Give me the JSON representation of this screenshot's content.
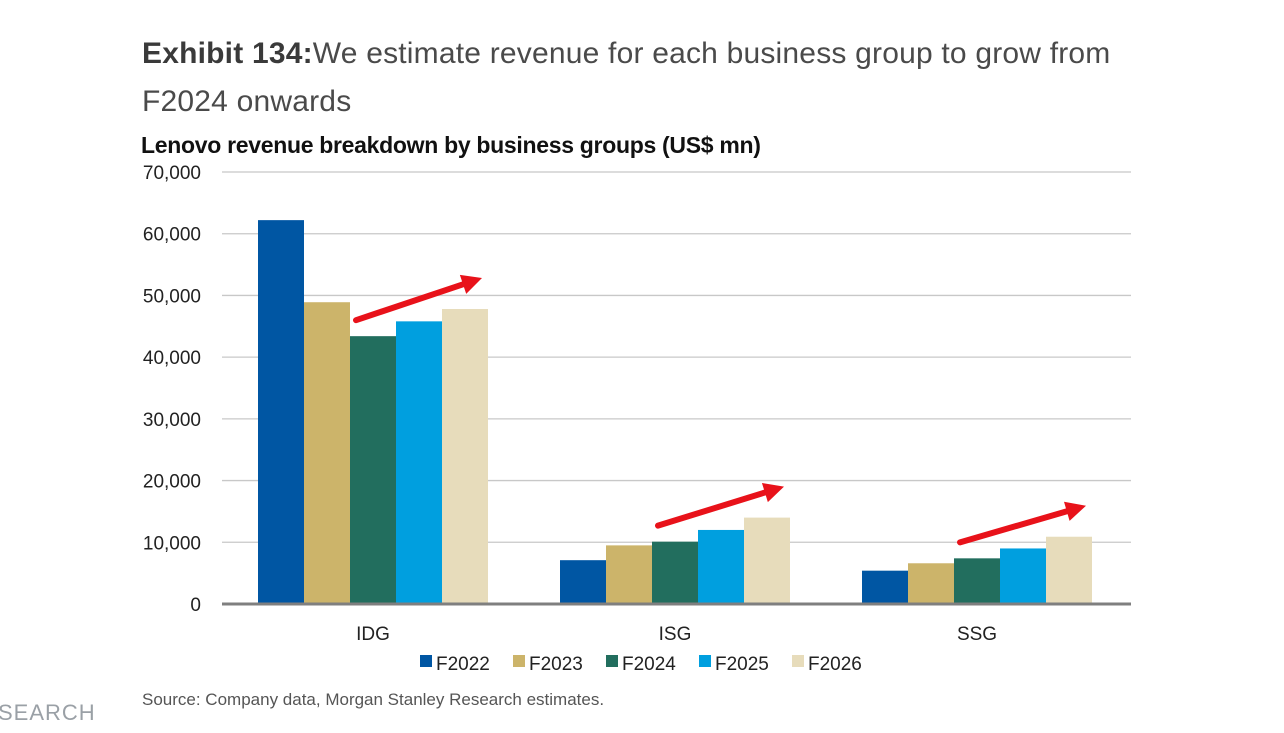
{
  "exhibit": {
    "label": "Exhibit 134:",
    "text": "We estimate revenue for each business group to grow from F2024 onwards"
  },
  "source": "Source: Company data, Morgan Stanley Research estimates.",
  "brand_fragment": "SEARCH",
  "chart_data": {
    "type": "bar",
    "title": "Lenovo revenue breakdown by business groups (US$ mn)",
    "categories": [
      "IDG",
      "ISG",
      "SSG"
    ],
    "series": [
      {
        "name": "F2022",
        "color": "#0056a3",
        "values": [
          62200,
          7100,
          5400
        ]
      },
      {
        "name": "F2023",
        "color": "#ccb46a",
        "values": [
          48900,
          9500,
          6600
        ]
      },
      {
        "name": "F2024",
        "color": "#226e5e",
        "values": [
          43400,
          10100,
          7400
        ]
      },
      {
        "name": "F2025",
        "color": "#009fdf",
        "values": [
          45800,
          12000,
          9000
        ]
      },
      {
        "name": "F2026",
        "color": "#e7dcbb",
        "values": [
          47800,
          14000,
          10900
        ]
      }
    ],
    "ylim": [
      0,
      70000
    ],
    "yticks": [
      0,
      10000,
      20000,
      30000,
      40000,
      50000,
      60000,
      70000
    ],
    "ytick_labels": [
      "0",
      "10,000",
      "20,000",
      "30,000",
      "40,000",
      "50,000",
      "60,000",
      "70,000"
    ],
    "xlabel": "",
    "ylabel": "",
    "grid": true,
    "legend": "bottom",
    "annotations": [
      {
        "type": "arrow",
        "color": "#e8121a",
        "category": "IDG",
        "from_series": "F2024",
        "to_series": "F2026",
        "meaning": "growth from F2024 onwards"
      },
      {
        "type": "arrow",
        "color": "#e8121a",
        "category": "ISG",
        "from_series": "F2024",
        "to_series": "F2026",
        "meaning": "growth from F2024 onwards"
      },
      {
        "type": "arrow",
        "color": "#e8121a",
        "category": "SSG",
        "from_series": "F2024",
        "to_series": "F2026",
        "meaning": "growth from F2024 onwards"
      }
    ]
  }
}
